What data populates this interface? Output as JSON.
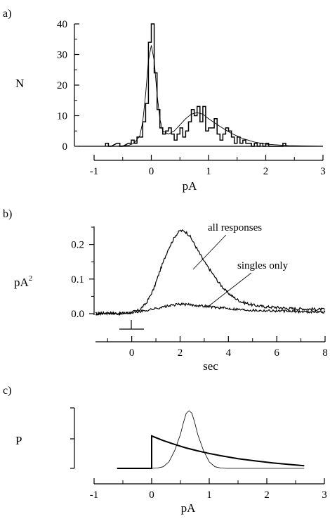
{
  "chart_data": [
    {
      "panel": "a)",
      "type": "line",
      "xlabel": "pA",
      "ylabel": "N",
      "xlim": [
        -1,
        3
      ],
      "ylim": [
        0,
        40
      ],
      "x_ticks": [
        "-1",
        "0",
        "1",
        "2",
        "3"
      ],
      "y_ticks": [
        "0",
        "10",
        "20",
        "30",
        "40"
      ],
      "histogram": {
        "bin_width": 0.05,
        "x": [
          -0.8,
          -0.75,
          -0.6,
          -0.55,
          -0.4,
          -0.35,
          -0.3,
          -0.25,
          -0.2,
          -0.15,
          -0.1,
          -0.05,
          0.0,
          0.05,
          0.1,
          0.15,
          0.2,
          0.25,
          0.3,
          0.35,
          0.4,
          0.45,
          0.5,
          0.55,
          0.6,
          0.65,
          0.7,
          0.75,
          0.8,
          0.85,
          0.9,
          0.95,
          1.0,
          1.05,
          1.1,
          1.15,
          1.2,
          1.25,
          1.3,
          1.35,
          1.4,
          1.45,
          1.5,
          1.55,
          1.6,
          1.65,
          1.7,
          1.75,
          1.8,
          1.85,
          1.9,
          1.95,
          2.0,
          2.05,
          2.1,
          2.15,
          2.2,
          2.25,
          2.3
        ],
        "counts": [
          1,
          0,
          1,
          0,
          1,
          2,
          1,
          3,
          3,
          8,
          14,
          34,
          40,
          24,
          12,
          6,
          4,
          5,
          6,
          4,
          2,
          4,
          6,
          3,
          5,
          8,
          12,
          10,
          13,
          8,
          13,
          5,
          6,
          6,
          9,
          4,
          2,
          4,
          6,
          5,
          3,
          1,
          3,
          1,
          2,
          1,
          1,
          0,
          1,
          0,
          1,
          0,
          1,
          0,
          0,
          0,
          0,
          0,
          1
        ]
      },
      "fit": {
        "x": [
          -1.0,
          -0.6,
          -0.4,
          -0.3,
          -0.2,
          -0.15,
          -0.1,
          -0.05,
          0.0,
          0.05,
          0.1,
          0.15,
          0.2,
          0.3,
          0.4,
          0.5,
          0.6,
          0.7,
          0.8,
          0.9,
          1.0,
          1.2,
          1.4,
          1.6,
          1.8,
          2.0,
          2.4,
          3.0
        ],
        "y": [
          0,
          0,
          0.3,
          1,
          3.5,
          8,
          17,
          28,
          33,
          28,
          17,
          9,
          5,
          4,
          5,
          7,
          9,
          10.5,
          11,
          10.5,
          9,
          6.5,
          4.2,
          2.5,
          1.4,
          0.7,
          0.2,
          0
        ]
      }
    },
    {
      "panel": "b)",
      "type": "line",
      "xlabel": "sec",
      "ylabel": "pA",
      "ylabel_superscript": "2",
      "xlim": [
        -1.5,
        8
      ],
      "ylim": [
        0,
        0.25
      ],
      "x_ticks": [
        "0",
        "2",
        "4",
        "6",
        "8"
      ],
      "y_ticks": [
        "0.0",
        "0.1",
        "0.2"
      ],
      "stimulus_time": 0,
      "series": [
        {
          "name": "all responses",
          "x": [
            -1.5,
            -1.0,
            -0.5,
            0.0,
            0.3,
            0.6,
            0.9,
            1.2,
            1.5,
            1.8,
            2.0,
            2.2,
            2.4,
            2.6,
            2.8,
            3.0,
            3.3,
            3.6,
            3.9,
            4.2,
            4.5,
            5.0,
            5.5,
            6.0,
            6.5,
            7.0,
            7.5,
            8.0
          ],
          "y": [
            0.0,
            0.002,
            0.0,
            0.004,
            0.01,
            0.03,
            0.07,
            0.13,
            0.185,
            0.225,
            0.24,
            0.238,
            0.225,
            0.2,
            0.175,
            0.15,
            0.12,
            0.09,
            0.065,
            0.048,
            0.035,
            0.025,
            0.02,
            0.018,
            0.015,
            0.014,
            0.013,
            0.012
          ]
        },
        {
          "name": "singles only",
          "x": [
            -1.5,
            -1.0,
            -0.5,
            0.0,
            0.5,
            1.0,
            1.5,
            2.0,
            2.5,
            3.0,
            3.5,
            4.0,
            4.5,
            5.0,
            6.0,
            7.0,
            8.0
          ],
          "y": [
            0.0,
            0.001,
            0.0,
            0.002,
            0.008,
            0.015,
            0.022,
            0.028,
            0.025,
            0.022,
            0.018,
            0.015,
            0.012,
            0.01,
            0.008,
            0.006,
            0.005
          ]
        }
      ]
    },
    {
      "panel": "c)",
      "type": "line",
      "xlabel": "pA",
      "ylabel": "P",
      "xlim": [
        -1,
        3
      ],
      "x_ticks": [
        "-1",
        "0",
        "1",
        "2",
        "3"
      ],
      "series": [
        {
          "style": "thick",
          "x": [
            -0.6,
            0.0,
            0.0,
            0.2,
            0.4,
            0.6,
            0.8,
            1.0,
            1.2,
            1.5,
            1.8,
            2.1,
            2.4,
            2.65
          ],
          "y": [
            0,
            0,
            1.0,
            0.86,
            0.74,
            0.63,
            0.54,
            0.46,
            0.39,
            0.3,
            0.23,
            0.17,
            0.12,
            0.08
          ]
        },
        {
          "style": "thin",
          "x": [
            -0.6,
            0.0,
            0.1,
            0.2,
            0.3,
            0.4,
            0.5,
            0.55,
            0.6,
            0.65,
            0.7,
            0.75,
            0.8,
            0.9,
            1.0,
            1.1,
            1.2,
            1.3,
            1.6,
            2.65
          ],
          "y": [
            0,
            0,
            0.01,
            0.05,
            0.2,
            0.55,
            1.05,
            1.4,
            1.7,
            1.78,
            1.7,
            1.4,
            1.05,
            0.55,
            0.2,
            0.05,
            0.01,
            0,
            0,
            0
          ]
        }
      ]
    }
  ],
  "annotations": {
    "all_responses": "all responses",
    "singles_only": "singles only"
  }
}
